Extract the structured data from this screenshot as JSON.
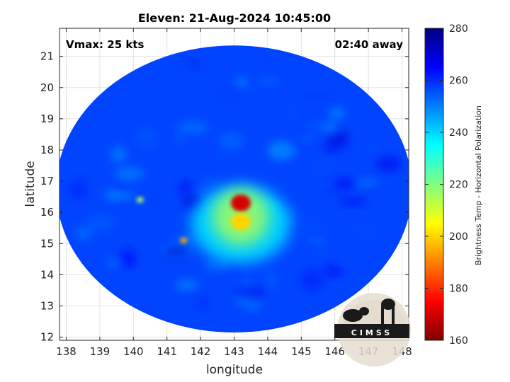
{
  "chart_data": {
    "type": "heatmap",
    "title": "Eleven: 21-Aug-2024 10:45:00",
    "xlabel": "longitude",
    "ylabel": "latitude",
    "xlim": [
      137.8,
      148.2
    ],
    "ylim": [
      11.9,
      21.9
    ],
    "xticks": [
      "138",
      "139",
      "140",
      "141",
      "142",
      "143",
      "144",
      "145",
      "146",
      "147",
      "148"
    ],
    "yticks": [
      "12",
      "13",
      "14",
      "15",
      "16",
      "17",
      "18",
      "19",
      "20",
      "21"
    ],
    "grid": true,
    "annotations": {
      "vmax": "Vmax: 25 kts",
      "time_offset": "02:40 away"
    },
    "swath": {
      "center": [
        143.0,
        16.75
      ],
      "radius_lon": 5.3,
      "radius_lat": 4.6
    },
    "features": [
      {
        "name": "core",
        "lon": 143.2,
        "lat": 16.3,
        "value": 170
      },
      {
        "name": "core-south",
        "lon": 143.2,
        "lat": 15.7,
        "value": 200
      },
      {
        "name": "band-west",
        "lon": 141.5,
        "lat": 15.1,
        "value": 195
      },
      {
        "name": "cell-nw",
        "lon": 140.2,
        "lat": 16.4,
        "value": 215
      }
    ],
    "colorbar": {
      "label": "Brightness Temp - Horizontal Polarization",
      "min": 160,
      "max": 280,
      "ticks": [
        "160",
        "180",
        "200",
        "220",
        "240",
        "260",
        "280"
      ],
      "colormap": [
        "#800000",
        "#ff0000",
        "#ff8000",
        "#ffff00",
        "#80ff80",
        "#00ffff",
        "#0080ff",
        "#0000ff",
        "#000080"
      ]
    },
    "logo_text": "CIMSS"
  }
}
